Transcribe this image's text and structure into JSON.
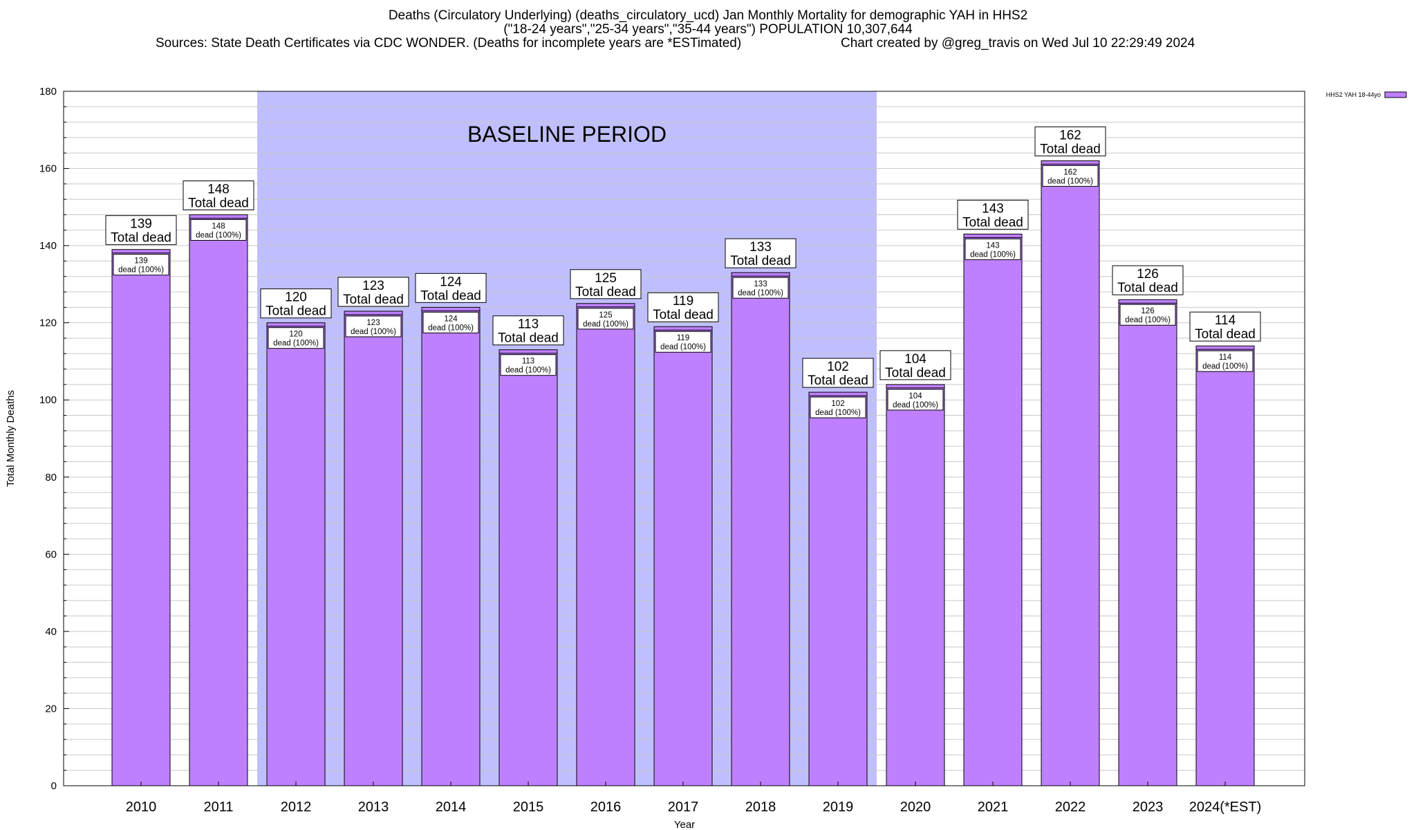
{
  "header": {
    "title_line1": "Deaths (Circulatory Underlying) (deaths_circulatory_ucd) Jan Monthly Mortality for demographic YAH in HHS2",
    "title_line2": "(\"18-24 years\",\"25-34 years\",\"35-44 years\") POPULATION 10,307,644",
    "sources": "Sources: State Death Certificates via CDC WONDER. (Deaths for incomplete years are *ESTimated)",
    "credit": "Chart created by @greg_travis on Wed Jul 10 22:29:49 2024"
  },
  "chart_data": {
    "type": "bar",
    "xlabel": "Year",
    "ylabel": "Total Monthly Deaths",
    "ylim": [
      0,
      180
    ],
    "y_major_ticks": [
      0,
      20,
      40,
      60,
      80,
      100,
      120,
      140,
      160,
      180
    ],
    "y_minor_step": 4,
    "grid": true,
    "legend": {
      "position": "top-right",
      "entries": [
        "HHS2 YAH 18-44yo"
      ]
    },
    "categories": [
      "2010",
      "2011",
      "2012",
      "2013",
      "2014",
      "2015",
      "2016",
      "2017",
      "2018",
      "2019",
      "2020",
      "2021",
      "2022",
      "2023",
      "2024(*EST)"
    ],
    "series": [
      {
        "name": "HHS2 YAH 18-44yo",
        "values": [
          139,
          148,
          120,
          123,
          124,
          113,
          125,
          119,
          133,
          102,
          104,
          143,
          162,
          126,
          114
        ]
      }
    ],
    "total_label_suffix": "Total dead",
    "inner_label_suffix": "dead (100%)",
    "baseline_period": {
      "label": "BASELINE PERIOD",
      "start": "2012",
      "end": "2019"
    },
    "colors": {
      "bar": "#bf80ff",
      "baseline": "#bfbfff",
      "grid": "#c8c8c8"
    }
  }
}
